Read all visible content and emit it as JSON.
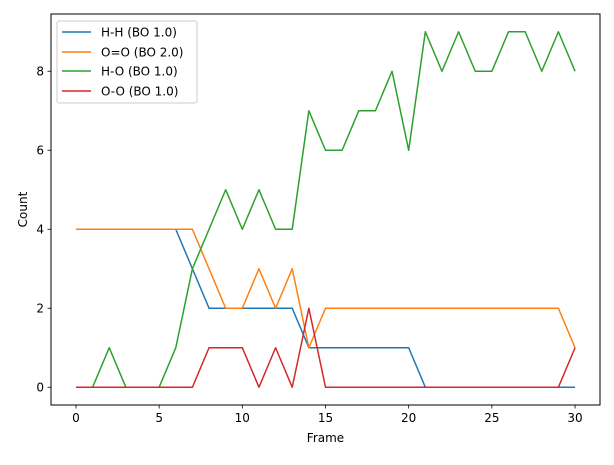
{
  "chart_data": {
    "type": "line",
    "title": "",
    "xlabel": "Frame",
    "ylabel": "Count",
    "xlim": [
      -1.5,
      31.5
    ],
    "ylim": [
      -0.45,
      9.45
    ],
    "xticks": [
      0,
      5,
      10,
      15,
      20,
      25,
      30
    ],
    "yticks": [
      0,
      2,
      4,
      6,
      8
    ],
    "grid": false,
    "legend_position": "upper left",
    "x": [
      0,
      1,
      2,
      3,
      4,
      5,
      6,
      7,
      8,
      9,
      10,
      11,
      12,
      13,
      14,
      15,
      16,
      17,
      18,
      19,
      20,
      21,
      22,
      23,
      24,
      25,
      26,
      27,
      28,
      29,
      30
    ],
    "series": [
      {
        "name": "H-H (BO 1.0)",
        "color": "#1f77b4",
        "values": [
          4,
          4,
          4,
          4,
          4,
          4,
          4,
          3,
          2,
          2,
          2,
          2,
          2,
          2,
          1,
          1,
          1,
          1,
          1,
          1,
          1,
          0,
          0,
          0,
          0,
          0,
          0,
          0,
          0,
          0,
          0
        ]
      },
      {
        "name": "O=O (BO 2.0)",
        "color": "#ff7f0e",
        "values": [
          4,
          4,
          4,
          4,
          4,
          4,
          4,
          4,
          3,
          2,
          2,
          3,
          2,
          3,
          1,
          2,
          2,
          2,
          2,
          2,
          2,
          2,
          2,
          2,
          2,
          2,
          2,
          2,
          2,
          2,
          1
        ]
      },
      {
        "name": "H-O (BO 1.0)",
        "color": "#2ca02c",
        "values": [
          0,
          0,
          1,
          0,
          0,
          0,
          1,
          3,
          4,
          5,
          4,
          5,
          4,
          4,
          7,
          6,
          6,
          7,
          7,
          8,
          6,
          9,
          8,
          9,
          8,
          8,
          9,
          9,
          8,
          9,
          8
        ]
      },
      {
        "name": "O-O (BO 1.0)",
        "color": "#d62728",
        "values": [
          0,
          0,
          0,
          0,
          0,
          0,
          0,
          0,
          1,
          1,
          1,
          0,
          1,
          0,
          2,
          0,
          0,
          0,
          0,
          0,
          0,
          0,
          0,
          0,
          0,
          0,
          0,
          0,
          0,
          0,
          1
        ]
      }
    ]
  }
}
